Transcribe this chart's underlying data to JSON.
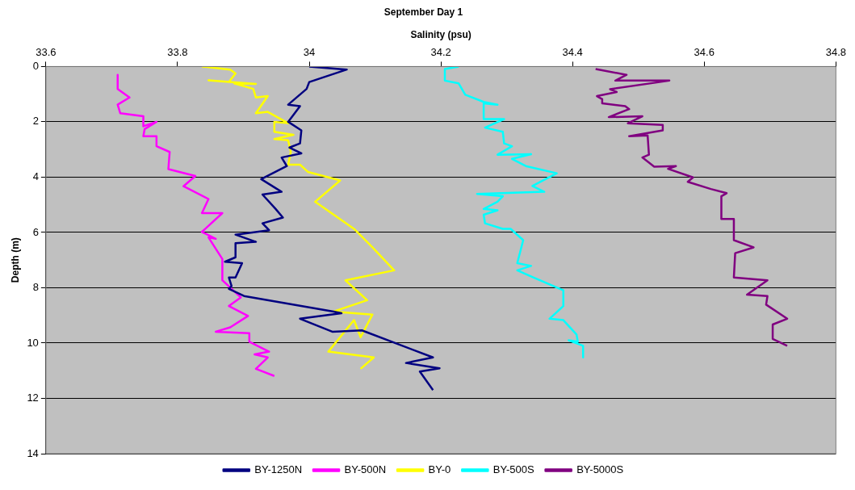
{
  "chart_data": {
    "type": "line",
    "title": "September Day 1",
    "xlabel": "Salinity (psu)",
    "ylabel": "Depth (m)",
    "xlim": [
      33.6,
      34.8
    ],
    "xticks": [
      33.6,
      33.8,
      34,
      34.2,
      34.4,
      34.6,
      34.8
    ],
    "ylim": [
      14,
      0
    ],
    "yticks": [
      0,
      2,
      4,
      6,
      8,
      10,
      12,
      14
    ],
    "grid": "y",
    "legend": "bottom",
    "series": [
      {
        "name": "BY-1250N",
        "color": "#000080",
        "x": [
          34.0,
          34.057,
          34.0,
          33.996,
          33.968,
          33.986,
          33.968,
          33.988,
          33.986,
          33.97,
          33.988,
          33.958,
          33.966,
          33.927,
          33.958,
          33.929,
          33.949,
          33.96,
          33.929,
          33.939,
          33.888,
          33.919,
          33.888,
          33.888,
          33.872,
          33.898,
          33.888,
          33.878,
          33.882,
          33.878,
          33.901,
          34.037,
          34.049,
          33.986,
          34.035,
          34.08,
          34.188,
          34.147,
          34.198,
          34.168,
          34.188
        ],
        "values": [
          0,
          0.11,
          0.56,
          0.81,
          1.38,
          1.43,
          2.0,
          2.31,
          2.78,
          2.93,
          3.14,
          3.29,
          3.6,
          4.07,
          4.53,
          4.63,
          5.15,
          5.46,
          5.67,
          5.92,
          6.08,
          6.34,
          6.39,
          6.9,
          7.06,
          7.11,
          7.63,
          7.63,
          7.94,
          8.04,
          8.3,
          8.86,
          8.92,
          9.12,
          9.59,
          9.54,
          10.52,
          10.72,
          10.91,
          11.03,
          11.7
        ]
      },
      {
        "name": "BY-500N",
        "color": "#ff00ff",
        "x": [
          33.709,
          33.709,
          33.727,
          33.709,
          33.713,
          33.748,
          33.748,
          33.768,
          33.75,
          33.748,
          33.768,
          33.768,
          33.788,
          33.786,
          33.827,
          33.809,
          33.847,
          33.837,
          33.868,
          33.837,
          33.858,
          33.847,
          33.868,
          33.868,
          33.896,
          33.878,
          33.907,
          33.88,
          33.858,
          33.909,
          33.909,
          33.939,
          33.917,
          33.937,
          33.919,
          33.947
        ],
        "values": [
          0.3,
          0.81,
          1.12,
          1.38,
          1.69,
          1.8,
          2.16,
          2.0,
          2.26,
          2.52,
          2.52,
          2.88,
          3.09,
          3.71,
          3.96,
          4.33,
          4.79,
          5.3,
          5.3,
          5.98,
          6.23,
          6.18,
          6.96,
          7.73,
          8.35,
          8.66,
          9.02,
          9.43,
          9.59,
          9.64,
          9.95,
          10.31,
          10.41,
          10.52,
          10.93,
          11.19
        ]
      },
      {
        "name": "BY-0",
        "color": "#ffff00",
        "x": [
          33.837,
          33.88,
          33.888,
          33.878,
          33.847,
          33.919,
          33.886,
          33.915,
          33.919,
          33.937,
          33.919,
          33.937,
          33.968,
          33.947,
          33.947,
          33.976,
          33.947,
          33.968,
          33.972,
          33.968,
          33.986,
          33.998,
          34.047,
          34.009,
          34.068,
          34.096,
          34.129,
          34.055,
          34.088,
          34.037,
          34.096,
          34.078,
          34.068,
          34.029,
          34.098,
          34.078
        ],
        "values": [
          0,
          0.11,
          0.25,
          0.56,
          0.5,
          0.63,
          0.61,
          0.81,
          1.12,
          1.07,
          1.69,
          1.64,
          2.05,
          2.0,
          2.36,
          2.47,
          2.62,
          2.67,
          3.09,
          3.55,
          3.55,
          3.81,
          4.12,
          4.89,
          5.87,
          6.54,
          7.37,
          7.73,
          8.45,
          8.86,
          8.97,
          9.79,
          9.17,
          10.31,
          10.52,
          10.93
        ]
      },
      {
        "name": "BY-500S",
        "color": "#00ffff",
        "x": [
          34.227,
          34.206,
          34.206,
          34.227,
          34.237,
          34.265,
          34.286,
          34.265,
          34.265,
          34.296,
          34.267,
          34.294,
          34.296,
          34.308,
          34.286,
          34.337,
          34.308,
          34.329,
          34.376,
          34.339,
          34.357,
          34.255,
          34.294,
          34.286,
          34.265,
          34.286,
          34.265,
          34.267,
          34.294,
          34.306,
          34.325,
          34.316,
          34.337,
          34.316,
          34.341,
          34.386,
          34.386,
          34.365,
          34.386,
          34.406,
          34.408,
          34.394,
          34.416,
          34.416
        ],
        "values": [
          0,
          0.09,
          0.51,
          0.61,
          1.02,
          1.28,
          1.38,
          1.33,
          1.9,
          1.9,
          2.21,
          2.36,
          2.78,
          2.88,
          3.19,
          3.17,
          3.34,
          3.6,
          3.86,
          4.32,
          4.53,
          4.61,
          4.69,
          4.89,
          5.15,
          5.2,
          5.36,
          5.67,
          5.87,
          5.87,
          6.28,
          7.11,
          7.21,
          7.37,
          7.63,
          8.09,
          8.66,
          9.12,
          9.17,
          9.69,
          9.95,
          9.9,
          10.1,
          10.52
        ]
      },
      {
        "name": "BY-5000S",
        "color": "#800080",
        "x": [
          34.435,
          34.482,
          34.465,
          34.547,
          34.457,
          34.467,
          34.437,
          34.445,
          34.445,
          34.48,
          34.486,
          34.455,
          34.506,
          34.484,
          34.537,
          34.537,
          34.486,
          34.514,
          34.516,
          34.506,
          34.524,
          34.557,
          34.545,
          34.583,
          34.575,
          34.61,
          34.634,
          34.626,
          34.626,
          34.645,
          34.645,
          34.675,
          34.647,
          34.645,
          34.696,
          34.665,
          34.696,
          34.694,
          34.726,
          34.704,
          34.704,
          34.726
        ],
        "values": [
          0.09,
          0.3,
          0.51,
          0.51,
          0.82,
          0.92,
          1.07,
          1.18,
          1.33,
          1.43,
          1.54,
          1.83,
          1.8,
          2.05,
          2.11,
          2.31,
          2.52,
          2.49,
          3.19,
          3.29,
          3.62,
          3.6,
          3.7,
          4.01,
          4.17,
          4.43,
          4.58,
          4.69,
          5.51,
          5.51,
          6.28,
          6.54,
          6.75,
          7.63,
          7.73,
          8.25,
          8.3,
          8.61,
          9.12,
          9.33,
          9.85,
          10.1
        ]
      }
    ]
  }
}
